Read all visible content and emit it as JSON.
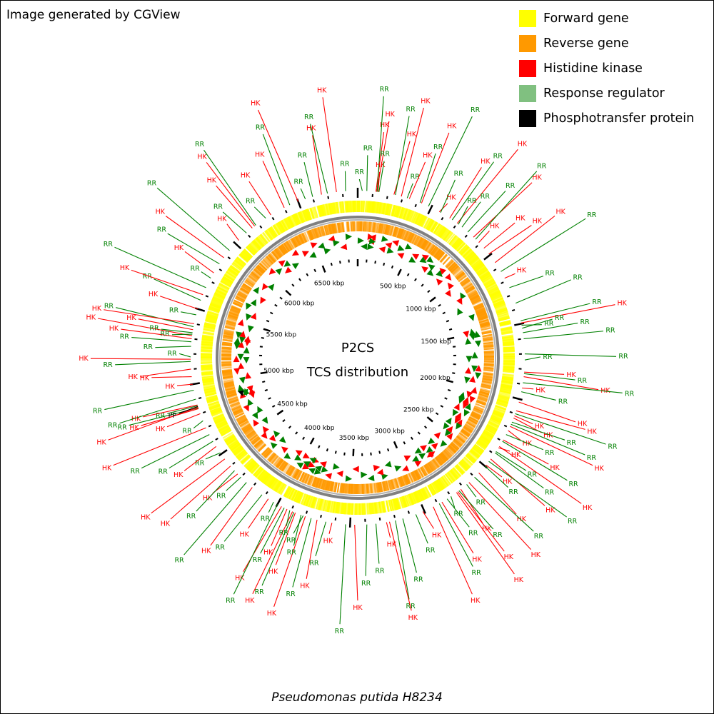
{
  "header": {
    "credit": "Image generated by CGView"
  },
  "footer": {
    "organism": "Pseudomonas putida H8234"
  },
  "center": {
    "line1": "P2CS",
    "line2": "TCS distribution"
  },
  "colors": {
    "forward": "#ffff00",
    "reverse": "#ff9900",
    "histidine_kinase": "#ff0000",
    "response_regulator": "#008000",
    "response_regulator_swatch": "#80c080",
    "phosphotransfer": "#000000",
    "backbone": "#808080"
  },
  "legend": [
    {
      "label": "Forward gene",
      "color": "#ffff00"
    },
    {
      "label": "Reverse gene",
      "color": "#ff9900"
    },
    {
      "label": "Histidine kinase",
      "color": "#ff0000"
    },
    {
      "label": "Response regulator",
      "color": "#80c080"
    },
    {
      "label": "Phosphotransfer protein",
      "color": "#000000"
    }
  ],
  "chart_data": {
    "type": "circular-genome-map",
    "genome_length_kbp": 6900,
    "tick_labels_kbp": [
      500,
      1000,
      1500,
      2000,
      2500,
      3000,
      3500,
      4000,
      4500,
      5000,
      5500,
      6000,
      6500
    ],
    "tick_unit": "kbp",
    "features": [
      {
        "type": "RR",
        "pos_kbp": 30
      },
      {
        "type": "RR",
        "pos_kbp": 60
      },
      {
        "type": "HK",
        "pos_kbp": 120
      },
      {
        "type": "HK",
        "pos_kbp": 125
      },
      {
        "type": "RR",
        "pos_kbp": 128
      },
      {
        "type": "HK",
        "pos_kbp": 135
      },
      {
        "type": "RR",
        "pos_kbp": 140
      },
      {
        "type": "HK",
        "pos_kbp": 240
      },
      {
        "type": "RR",
        "pos_kbp": 250
      },
      {
        "type": "HK",
        "pos_kbp": 290
      },
      {
        "type": "RR",
        "pos_kbp": 330
      },
      {
        "type": "HK",
        "pos_kbp": 345
      },
      {
        "type": "RR",
        "pos_kbp": 420
      },
      {
        "type": "HK",
        "pos_kbp": 430
      },
      {
        "type": "RR",
        "pos_kbp": 480
      },
      {
        "type": "HK",
        "pos_kbp": 560
      },
      {
        "type": "RR",
        "pos_kbp": 570
      },
      {
        "type": "HK",
        "pos_kbp": 640
      },
      {
        "type": "RR",
        "pos_kbp": 660
      },
      {
        "type": "HK",
        "pos_kbp": 700
      },
      {
        "type": "RR",
        "pos_kbp": 710
      },
      {
        "type": "RR",
        "pos_kbp": 740
      },
      {
        "type": "RR",
        "pos_kbp": 790
      },
      {
        "type": "HK",
        "pos_kbp": 840
      },
      {
        "type": "RR",
        "pos_kbp": 860
      },
      {
        "type": "HK",
        "pos_kbp": 890
      },
      {
        "type": "HK",
        "pos_kbp": 940
      },
      {
        "type": "HK",
        "pos_kbp": 990
      },
      {
        "type": "HK",
        "pos_kbp": 1060
      },
      {
        "type": "RR",
        "pos_kbp": 1130
      },
      {
        "type": "HK",
        "pos_kbp": 1180
      },
      {
        "type": "RR",
        "pos_kbp": 1250
      },
      {
        "type": "RR",
        "pos_kbp": 1360
      },
      {
        "type": "RR",
        "pos_kbp": 1480
      },
      {
        "type": "HK",
        "pos_kbp": 1495
      },
      {
        "type": "RR",
        "pos_kbp": 1510
      },
      {
        "type": "RR",
        "pos_kbp": 1530
      },
      {
        "type": "RR",
        "pos_kbp": 1560
      },
      {
        "type": "RR",
        "pos_kbp": 1600
      },
      {
        "type": "RR",
        "pos_kbp": 1700
      },
      {
        "type": "RR",
        "pos_kbp": 1740
      },
      {
        "type": "HK",
        "pos_kbp": 1820
      },
      {
        "type": "RR",
        "pos_kbp": 1830
      },
      {
        "type": "HK",
        "pos_kbp": 1850
      },
      {
        "type": "RR",
        "pos_kbp": 1890
      },
      {
        "type": "HK",
        "pos_kbp": 1925
      },
      {
        "type": "RR",
        "pos_kbp": 1950
      },
      {
        "type": "HK",
        "pos_kbp": 2020
      },
      {
        "type": "HK",
        "pos_kbp": 2080
      },
      {
        "type": "RR",
        "pos_kbp": 2100
      },
      {
        "type": "HK",
        "pos_kbp": 2115
      },
      {
        "type": "HK",
        "pos_kbp": 2130
      },
      {
        "type": "RR",
        "pos_kbp": 2160
      },
      {
        "type": "RR",
        "pos_kbp": 2175
      },
      {
        "type": "HK",
        "pos_kbp": 2190
      },
      {
        "type": "HK",
        "pos_kbp": 2220
      },
      {
        "type": "RR",
        "pos_kbp": 2250
      },
      {
        "type": "HK",
        "pos_kbp": 2290
      },
      {
        "type": "RR",
        "pos_kbp": 2300
      },
      {
        "type": "HK",
        "pos_kbp": 2340
      },
      {
        "type": "HK",
        "pos_kbp": 2350
      },
      {
        "type": "RR",
        "pos_kbp": 2380
      },
      {
        "type": "RR",
        "pos_kbp": 2390
      },
      {
        "type": "HK",
        "pos_kbp": 2440
      },
      {
        "type": "RR",
        "pos_kbp": 2460
      },
      {
        "type": "HK",
        "pos_kbp": 2490
      },
      {
        "type": "RR",
        "pos_kbp": 2500
      },
      {
        "type": "HK",
        "pos_kbp": 2560
      },
      {
        "type": "RR",
        "pos_kbp": 2600
      },
      {
        "type": "HK",
        "pos_kbp": 2650
      },
      {
        "type": "RR",
        "pos_kbp": 2670
      },
      {
        "type": "HK",
        "pos_kbp": 2720
      },
      {
        "type": "RR",
        "pos_kbp": 2735
      },
      {
        "type": "HK",
        "pos_kbp": 2745
      },
      {
        "type": "HK",
        "pos_kbp": 2755
      },
      {
        "type": "RR",
        "pos_kbp": 2800
      },
      {
        "type": "RR",
        "pos_kbp": 2830
      },
      {
        "type": "HK",
        "pos_kbp": 2870
      },
      {
        "type": "RR",
        "pos_kbp": 2890
      },
      {
        "type": "HK",
        "pos_kbp": 2935
      },
      {
        "type": "HK",
        "pos_kbp": 3010
      },
      {
        "type": "RR",
        "pos_kbp": 3060
      },
      {
        "type": "RR",
        "pos_kbp": 3150
      },
      {
        "type": "RR",
        "pos_kbp": 3200
      },
      {
        "type": "HK",
        "pos_kbp": 3240
      },
      {
        "type": "HK",
        "pos_kbp": 3260
      },
      {
        "type": "RR",
        "pos_kbp": 3330
      },
      {
        "type": "RR",
        "pos_kbp": 3390
      },
      {
        "type": "HK",
        "pos_kbp": 3470
      },
      {
        "type": "RR",
        "pos_kbp": 3530
      },
      {
        "type": "HK",
        "pos_kbp": 3620
      },
      {
        "type": "RR",
        "pos_kbp": 3660
      },
      {
        "type": "HK",
        "pos_kbp": 3720
      },
      {
        "type": "RR",
        "pos_kbp": 3760
      },
      {
        "type": "HK",
        "pos_kbp": 3800
      },
      {
        "type": "RR",
        "pos_kbp": 3815
      },
      {
        "type": "RR",
        "pos_kbp": 3830
      },
      {
        "type": "HK",
        "pos_kbp": 3870
      },
      {
        "type": "RR",
        "pos_kbp": 3880
      },
      {
        "type": "HK",
        "pos_kbp": 3890
      },
      {
        "type": "RR",
        "pos_kbp": 3910
      },
      {
        "type": "HK",
        "pos_kbp": 3930
      },
      {
        "type": "RR",
        "pos_kbp": 3950
      },
      {
        "type": "HK",
        "pos_kbp": 3970
      },
      {
        "type": "RR",
        "pos_kbp": 4000
      },
      {
        "type": "RR",
        "pos_kbp": 4030
      },
      {
        "type": "HK",
        "pos_kbp": 4070
      },
      {
        "type": "RR",
        "pos_kbp": 4120
      },
      {
        "type": "HK",
        "pos_kbp": 4200
      },
      {
        "type": "RR",
        "pos_kbp": 4250
      },
      {
        "type": "RR",
        "pos_kbp": 4300
      },
      {
        "type": "HK",
        "pos_kbp": 4330
      },
      {
        "type": "RR",
        "pos_kbp": 4360
      },
      {
        "type": "HK",
        "pos_kbp": 4400
      },
      {
        "type": "HK",
        "pos_kbp": 4460
      },
      {
        "type": "RR",
        "pos_kbp": 4510
      },
      {
        "type": "HK",
        "pos_kbp": 4560
      },
      {
        "type": "RR",
        "pos_kbp": 4600
      },
      {
        "type": "RR",
        "pos_kbp": 4650
      },
      {
        "type": "HK",
        "pos_kbp": 4700
      },
      {
        "type": "RR",
        "pos_kbp": 4750
      },
      {
        "type": "HK",
        "pos_kbp": 4800
      },
      {
        "type": "HK",
        "pos_kbp": 4835
      },
      {
        "type": "RR",
        "pos_kbp": 4840
      },
      {
        "type": "HK",
        "pos_kbp": 4845
      },
      {
        "type": "PP",
        "pos_kbp": 4850
      },
      {
        "type": "RR",
        "pos_kbp": 4855
      },
      {
        "type": "HK",
        "pos_kbp": 4860
      },
      {
        "type": "RR",
        "pos_kbp": 4900
      },
      {
        "type": "RR",
        "pos_kbp": 4960
      },
      {
        "type": "HK",
        "pos_kbp": 5000
      },
      {
        "type": "HK",
        "pos_kbp": 5050
      },
      {
        "type": "HK",
        "pos_kbp": 5100
      },
      {
        "type": "RR",
        "pos_kbp": 5150
      },
      {
        "type": "HK",
        "pos_kbp": 5165
      },
      {
        "type": "RR",
        "pos_kbp": 5180
      },
      {
        "type": "RR",
        "pos_kbp": 5250
      },
      {
        "type": "RR",
        "pos_kbp": 5280
      },
      {
        "type": "HK",
        "pos_kbp": 5300
      },
      {
        "type": "HK",
        "pos_kbp": 5320
      },
      {
        "type": "RR",
        "pos_kbp": 5330
      },
      {
        "type": "RR",
        "pos_kbp": 5340
      },
      {
        "type": "HK",
        "pos_kbp": 5360
      },
      {
        "type": "RR",
        "pos_kbp": 5380
      },
      {
        "type": "HK",
        "pos_kbp": 5400
      },
      {
        "type": "RR",
        "pos_kbp": 5460
      },
      {
        "type": "HK",
        "pos_kbp": 5500
      },
      {
        "type": "RR",
        "pos_kbp": 5560
      },
      {
        "type": "HK",
        "pos_kbp": 5600
      },
      {
        "type": "RR",
        "pos_kbp": 5650
      },
      {
        "type": "RR",
        "pos_kbp": 5720
      },
      {
        "type": "HK",
        "pos_kbp": 5760
      },
      {
        "type": "RR",
        "pos_kbp": 5830
      },
      {
        "type": "HK",
        "pos_kbp": 5880
      },
      {
        "type": "RR",
        "pos_kbp": 5940
      },
      {
        "type": "HK",
        "pos_kbp": 6030
      },
      {
        "type": "RR",
        "pos_kbp": 6100
      },
      {
        "type": "HK",
        "pos_kbp": 6150
      },
      {
        "type": "HK",
        "pos_kbp": 6170
      },
      {
        "type": "RR",
        "pos_kbp": 6180
      },
      {
        "type": "RR",
        "pos_kbp": 6260
      },
      {
        "type": "HK",
        "pos_kbp": 6300
      },
      {
        "type": "HK",
        "pos_kbp": 6400
      },
      {
        "type": "RR",
        "pos_kbp": 6440
      },
      {
        "type": "HK",
        "pos_kbp": 6500
      },
      {
        "type": "RR",
        "pos_kbp": 6550
      },
      {
        "type": "RR",
        "pos_kbp": 6600
      },
      {
        "type": "HK",
        "pos_kbp": 6660
      },
      {
        "type": "RR",
        "pos_kbp": 6700
      },
      {
        "type": "HK",
        "pos_kbp": 6760
      },
      {
        "type": "RR",
        "pos_kbp": 6820
      }
    ]
  }
}
